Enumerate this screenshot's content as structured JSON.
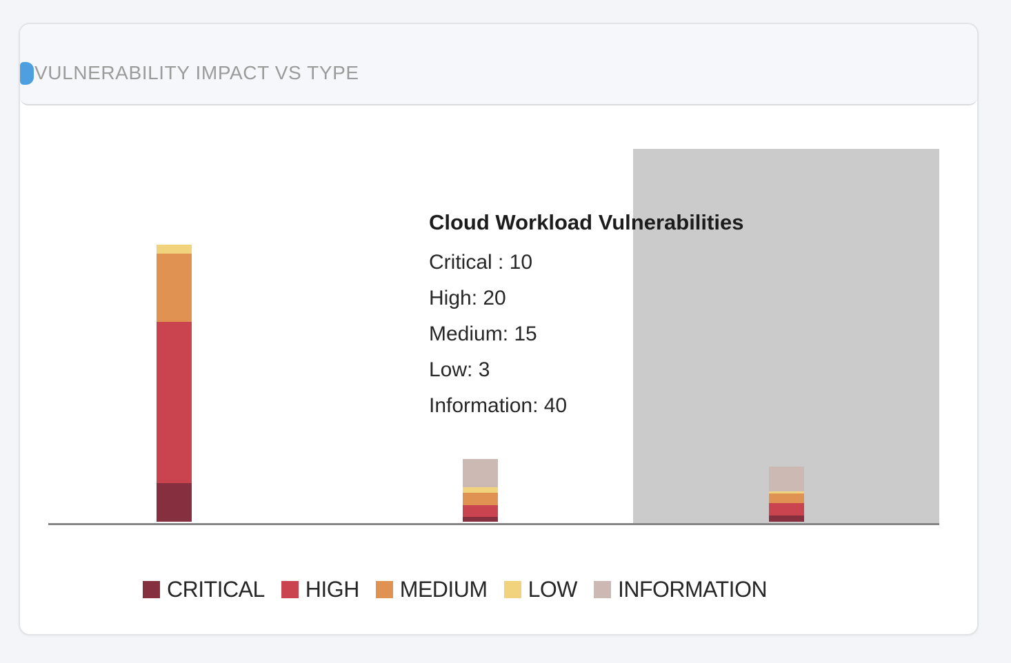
{
  "card": {
    "title": "VULNERABILITY IMPACT VS TYPE"
  },
  "tooltip": {
    "title": "Cloud Workload Vulnerabilities",
    "lines": [
      "Critical : 10",
      "High: 20",
      "Medium: 15",
      "Low: 3",
      "Information: 40"
    ]
  },
  "colors": {
    "accent_blue": "#4d9fdf",
    "hover_band": "#cbcbcb",
    "axis": "#858585",
    "card_header_bg": "#f6f7fa",
    "page_bg": "#f3f5f9",
    "title_gray": "#9b9b9b"
  },
  "chart_data": {
    "type": "bar",
    "stacked": true,
    "title": "VULNERABILITY IMPACT VS TYPE",
    "categories": [
      "",
      "",
      "Cloud Workload Vulnerabilities"
    ],
    "series": [
      {
        "name": "CRITICAL",
        "color": "#862f3f",
        "values": [
          62,
          8,
          10
        ]
      },
      {
        "name": "HIGH",
        "color": "#c9444f",
        "values": [
          257,
          18,
          20
        ]
      },
      {
        "name": "MEDIUM",
        "color": "#e09253",
        "values": [
          109,
          20,
          15
        ]
      },
      {
        "name": "LOW",
        "color": "#f1d37e",
        "values": [
          15,
          9,
          3
        ]
      },
      {
        "name": "INFORMATION",
        "color": "#ccb9b3",
        "values": [
          0,
          45,
          40
        ]
      }
    ],
    "hovered_category_index": 2,
    "hovered_category_values": {
      "Critical": 10,
      "High": 20,
      "Medium": 15,
      "Low": 3,
      "Information": 40
    },
    "xlabel": "",
    "ylabel": "",
    "ylim": [
      0,
      600
    ],
    "grid": false,
    "legend_position": "bottom",
    "legend_entries": [
      "CRITICAL",
      "HIGH",
      "MEDIUM",
      "LOW",
      "INFORMATION"
    ]
  }
}
